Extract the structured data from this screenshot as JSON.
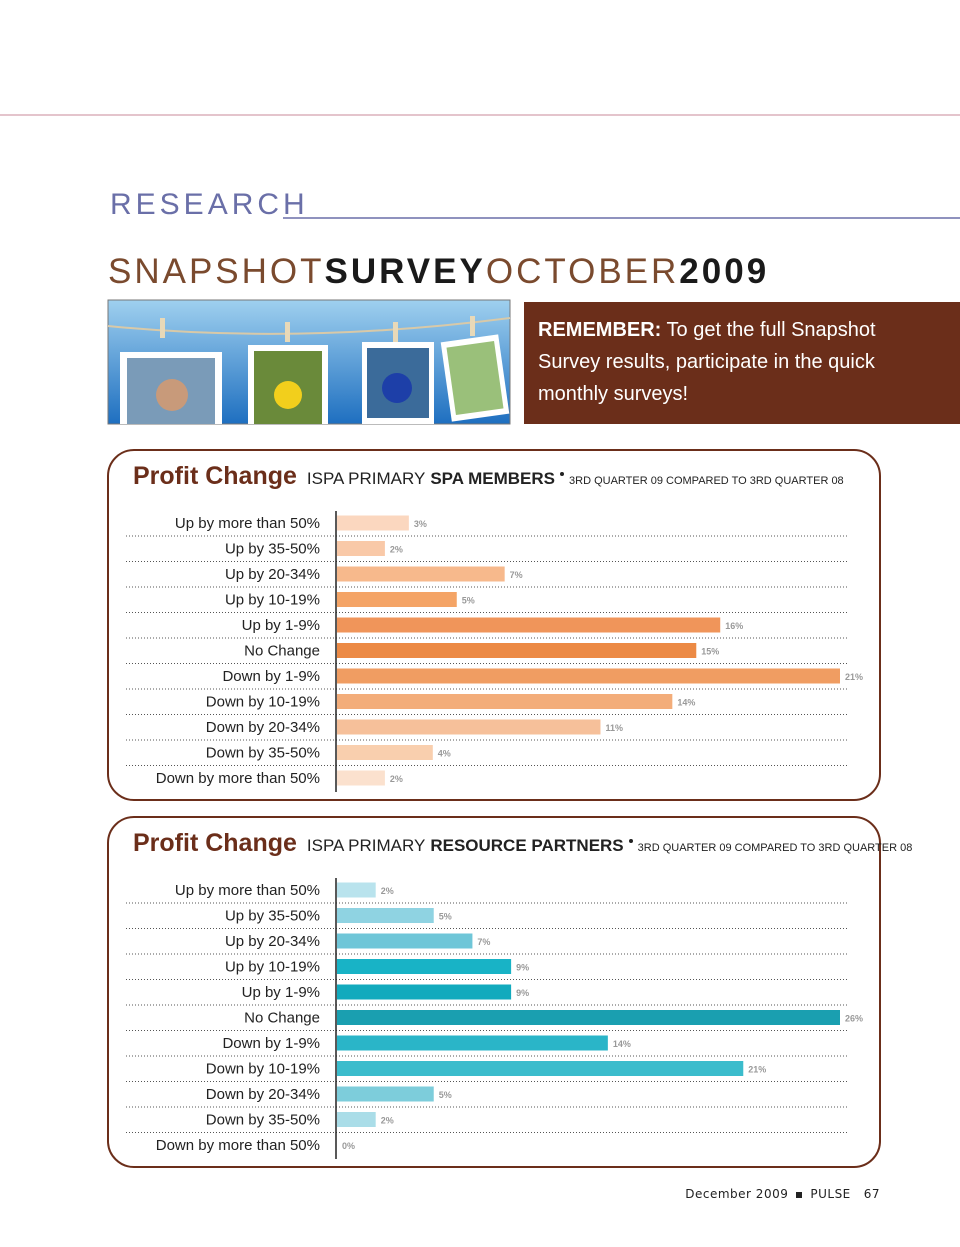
{
  "section": "RESEARCH",
  "title": {
    "part1": "SNAPSHOT",
    "part2": "SURVEY",
    "part3": "OCTOBER",
    "part4": "2009"
  },
  "callout": {
    "lead": "REMEMBER:",
    "text": "To get the full Snapshot Survey results, participate in the quick monthly surveys!"
  },
  "chart_data": [
    {
      "type": "bar",
      "orientation": "horizontal",
      "title": "Profit Change",
      "subtitle": "ISPA PRIMARY",
      "group": "SPA MEMBERS",
      "note": "3RD QUARTER 09 COMPARED TO 3RD QUARTER 08",
      "categories": [
        "Up by more than 50%",
        "Up by 35-50%",
        "Up by 20-34%",
        "Up by 10-19%",
        "Up by 1-9%",
        "No Change",
        "Down by 1-9%",
        "Down by 10-19%",
        "Down by 20-34%",
        "Down by 35-50%",
        "Down by more than 50%"
      ],
      "values": [
        3,
        2,
        7,
        5,
        16,
        15,
        21,
        14,
        11,
        4,
        2
      ],
      "value_labels": [
        "3%",
        "2%",
        "7%",
        "5%",
        "16%",
        "15%",
        "21%",
        "14%",
        "11%",
        "4%",
        "2%"
      ],
      "colors": [
        "#fbd7bf",
        "#f9c9a8",
        "#f7b98c",
        "#f4a466",
        "#f0955a",
        "#ec8a45",
        "#f09d62",
        "#f3ad7a",
        "#f6c09a",
        "#f9cfae",
        "#fbe1ce"
      ]
    },
    {
      "type": "bar",
      "orientation": "horizontal",
      "title": "Profit Change",
      "subtitle": "ISPA PRIMARY",
      "group": "RESOURCE PARTNERS",
      "note": "3RD QUARTER 09 COMPARED TO 3RD QUARTER 08",
      "categories": [
        "Up by more than 50%",
        "Up by 35-50%",
        "Up by 20-34%",
        "Up by 10-19%",
        "Up by 1-9%",
        "No Change",
        "Down by 1-9%",
        "Down by 10-19%",
        "Down by 20-34%",
        "Down by 35-50%",
        "Down by more than 50%"
      ],
      "values": [
        2,
        5,
        7,
        9,
        9,
        26,
        14,
        21,
        5,
        2,
        0
      ],
      "value_labels": [
        "2%",
        "5%",
        "7%",
        "9%",
        "9%",
        "26%",
        "14%",
        "21%",
        "5%",
        "2%",
        "0%"
      ],
      "colors": [
        "#b9e3ed",
        "#8fd3e2",
        "#6fc6d8",
        "#18b3c6",
        "#12aabd",
        "#1a9fb0",
        "#2ab5c8",
        "#3bbccc",
        "#7dcddb",
        "#aadde8",
        "#cdeef4"
      ]
    }
  ],
  "footer": {
    "date": "December 2009",
    "magazine": "PULSE",
    "page": "67"
  }
}
